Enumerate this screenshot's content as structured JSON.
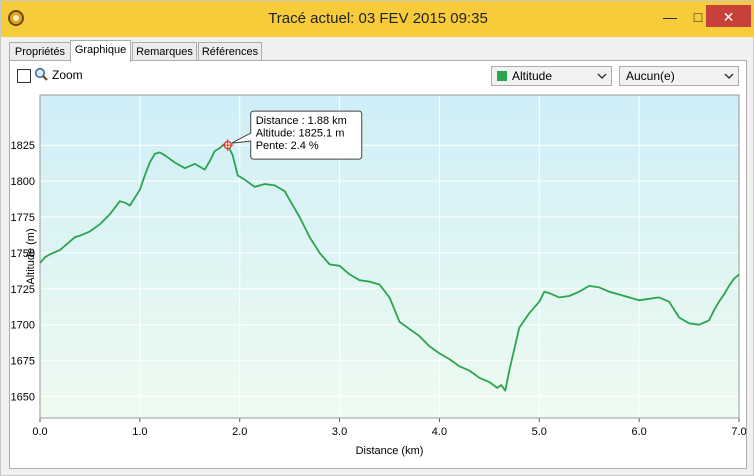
{
  "window": {
    "title": "Tracé actuel: 03 FEV 2015 09:35",
    "minimize_glyph": "—",
    "maximize_glyph": "□",
    "close_glyph": "✕"
  },
  "tabs": [
    {
      "label": "Propriétés",
      "active": false
    },
    {
      "label": "Graphique",
      "active": true
    },
    {
      "label": "Remarques",
      "active": false
    },
    {
      "label": "Références",
      "active": false
    }
  ],
  "toolbar": {
    "zoom_label": "Zoom",
    "zoom_checked": false,
    "series_select": "Altitude",
    "other_select": "Aucun(e)"
  },
  "colors": {
    "line": "#2ca44e",
    "fill_top": "#cfeef7",
    "fill_bottom": "#eefbf0",
    "titlebar": "#f7cc3a",
    "close": "#c7413b"
  },
  "icons": {
    "app": "gps-app-icon",
    "zoom": "magnifier-icon",
    "dropdown": "chevron-down-icon"
  },
  "chart_data": {
    "type": "area",
    "xlabel": "Distance  (km)",
    "ylabel": "Altitude (m)",
    "xlim": [
      0,
      7.0
    ],
    "ylim": [
      1635,
      1860
    ],
    "xticks": [
      "0.0",
      "1.0",
      "2.0",
      "3.0",
      "4.0",
      "5.0",
      "6.0",
      "7.0"
    ],
    "yticks": [
      "1650",
      "1675",
      "1700",
      "1725",
      "1750",
      "1775",
      "1800",
      "1825"
    ],
    "grid": true,
    "series": [
      {
        "x": [
          0,
          0.05,
          0.1,
          0.2,
          0.3,
          0.35,
          0.4,
          0.5,
          0.6,
          0.7,
          0.8,
          0.85,
          0.9,
          1.0,
          1.05,
          1.1,
          1.15,
          1.2,
          1.25,
          1.35,
          1.45,
          1.55,
          1.65,
          1.7,
          1.75,
          1.8,
          1.85,
          1.88,
          1.93,
          1.98,
          2.05,
          2.15,
          2.25,
          2.35,
          2.45,
          2.5,
          2.6,
          2.7,
          2.8,
          2.9,
          3.0,
          3.1,
          3.2,
          3.3,
          3.4,
          3.5,
          3.6,
          3.7,
          3.8,
          3.9,
          4.0,
          4.1,
          4.2,
          4.3,
          4.4,
          4.5,
          4.58,
          4.62,
          4.66,
          4.7,
          4.75,
          4.8,
          4.9,
          5.0,
          5.05,
          5.1,
          5.2,
          5.3,
          5.4,
          5.5,
          5.6,
          5.7,
          5.8,
          5.9,
          6.0,
          6.1,
          6.2,
          6.3,
          6.4,
          6.5,
          6.6,
          6.7,
          6.75,
          6.8,
          6.85,
          6.9,
          6.95,
          7.0
        ],
        "y": [
          1743,
          1747,
          1749,
          1752,
          1758,
          1761,
          1762,
          1765,
          1770,
          1777,
          1786,
          1785,
          1783,
          1794,
          1804,
          1813,
          1819,
          1820,
          1818,
          1813,
          1809,
          1812,
          1808,
          1814,
          1821,
          1823,
          1826,
          1825.1,
          1818,
          1804,
          1801,
          1796,
          1798,
          1797,
          1793,
          1787,
          1775,
          1761,
          1750,
          1742,
          1741,
          1735,
          1731,
          1730,
          1728,
          1719,
          1702,
          1697,
          1692,
          1685,
          1680,
          1676,
          1671,
          1668,
          1663,
          1660,
          1656,
          1658,
          1654,
          1668,
          1683,
          1698,
          1708,
          1716,
          1723,
          1722,
          1719,
          1720,
          1723,
          1727,
          1726,
          1723,
          1721,
          1719,
          1717,
          1718,
          1719,
          1716,
          1705,
          1701,
          1700,
          1703,
          1710,
          1716,
          1721,
          1727,
          1732,
          1735
        ]
      }
    ],
    "tooltip": {
      "x": 1.88,
      "y": 1825.1,
      "lines": [
        "Distance  : 1.88 km",
        "Altitude: 1825.1 m",
        "Pente: 2.4 %"
      ]
    }
  }
}
